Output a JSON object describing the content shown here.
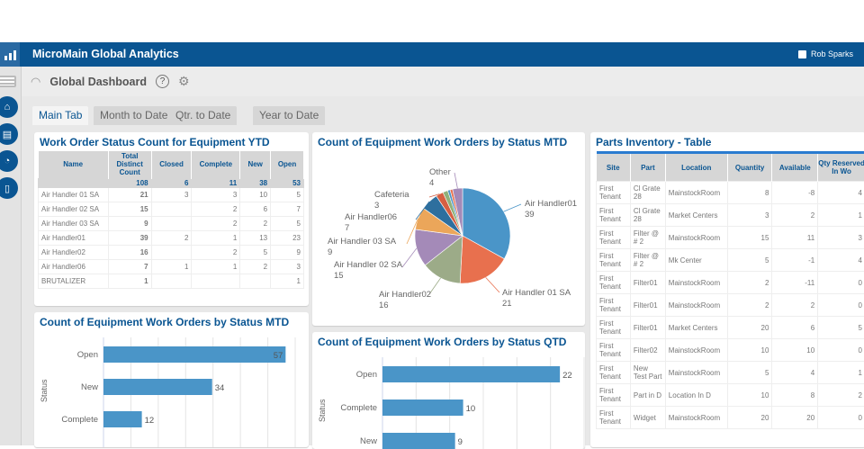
{
  "app": {
    "title": "MicroMain Global Analytics",
    "user": "Rob Sparks"
  },
  "subheader": {
    "title": "Global Dashboard",
    "help": "?"
  },
  "tabs": [
    {
      "label": "Main Tab",
      "active": true
    },
    {
      "label": "Month to Date"
    },
    {
      "label": "Qtr. to Date"
    },
    {
      "label": "Year to Date"
    }
  ],
  "wo_table": {
    "title": "Work Order Status Count for Equipment YTD",
    "headers": [
      "Name",
      "Total Distinct Count",
      "Closed",
      "Complete",
      "New",
      "Open"
    ],
    "totals": [
      "",
      "108",
      "6",
      "11",
      "38",
      "53"
    ],
    "rows": [
      [
        "Air Handler 01 SA",
        "21",
        "3",
        "3",
        "10",
        "5"
      ],
      [
        "Air Handler 02 SA",
        "15",
        "",
        "2",
        "6",
        "7"
      ],
      [
        "Air Handler 03 SA",
        "9",
        "",
        "2",
        "2",
        "5"
      ],
      [
        "Air Handler01",
        "39",
        "2",
        "1",
        "13",
        "23"
      ],
      [
        "Air Handler02",
        "16",
        "",
        "2",
        "5",
        "9"
      ],
      [
        "Air Handler06",
        "7",
        "1",
        "1",
        "2",
        "3"
      ],
      [
        "BRUTALIZER",
        "1",
        "",
        "",
        "",
        "1"
      ]
    ]
  },
  "inventory": {
    "title": "Parts Inventory - Table",
    "headers": [
      "Site",
      "Part",
      "Location",
      "Quantity",
      "Available",
      "Qty Reserved In Wo"
    ],
    "rows": [
      [
        "First Tenant",
        "Cl Grate 28",
        "MainstockRoom",
        "8",
        "-8",
        "4"
      ],
      [
        "First Tenant",
        "Cl Grate 28",
        "Market Centers",
        "3",
        "2",
        "1"
      ],
      [
        "First Tenant",
        "Filter @ # 2",
        "MainstockRoom",
        "15",
        "11",
        "3"
      ],
      [
        "First Tenant",
        "Filter @ # 2",
        "Mk Center",
        "5",
        "-1",
        "4"
      ],
      [
        "First Tenant",
        "Filter01",
        "MainstockRoom",
        "2",
        "-11",
        "0"
      ],
      [
        "First Tenant",
        "Filter01",
        "MainstockRoom",
        "2",
        "2",
        "0"
      ],
      [
        "First Tenant",
        "Filter01",
        "Market Centers",
        "20",
        "6",
        "5"
      ],
      [
        "First Tenant",
        "Filter02",
        "MainstockRoom",
        "10",
        "10",
        "0"
      ],
      [
        "First Tenant",
        "New Test Part",
        "MainstockRoom",
        "5",
        "4",
        "1"
      ],
      [
        "First Tenant",
        "Part in D",
        "Location In D",
        "10",
        "8",
        "2"
      ],
      [
        "First Tenant",
        "Widget",
        "MainstockRoom",
        "20",
        "20",
        "0"
      ]
    ]
  },
  "chart_data": [
    {
      "type": "pie",
      "title": "Count of Equipment Work Orders by Status MTD",
      "labels": [
        "Air Handler01",
        "Air Handler 01 SA",
        "Air Handler02",
        "Air Handler 02 SA",
        "Air Handler 03 SA",
        "Air Handler06",
        "Cafeteria",
        "",
        "",
        "",
        "Other"
      ],
      "values": [
        39,
        21,
        16,
        15,
        9,
        7,
        3,
        2,
        1,
        1,
        4
      ],
      "colors": [
        "#4a95c8",
        "#e8704e",
        "#9cab88",
        "#a48ab8",
        "#eba65a",
        "#2e6f9e",
        "#d65f42",
        "#8fb07a",
        "#4a95c8",
        "#e8704e",
        "#a48ab8"
      ]
    },
    {
      "type": "bar",
      "orientation": "horizontal",
      "title": "Count of Equipment Work Orders by Status MTD",
      "ylabel": "Status",
      "categories": [
        "Open",
        "New",
        "Complete"
      ],
      "values": [
        57,
        34,
        12
      ],
      "xlim": [
        0,
        60
      ],
      "color": "#4a95c8",
      "grid": true
    },
    {
      "type": "bar",
      "orientation": "horizontal",
      "title": "Count of Equipment Work Orders by Status QTD",
      "ylabel": "Status",
      "categories": [
        "Open",
        "Complete",
        "New"
      ],
      "values": [
        22,
        10,
        9
      ],
      "xlim": [
        0,
        25
      ],
      "color": "#4a95c8",
      "grid": true
    }
  ]
}
